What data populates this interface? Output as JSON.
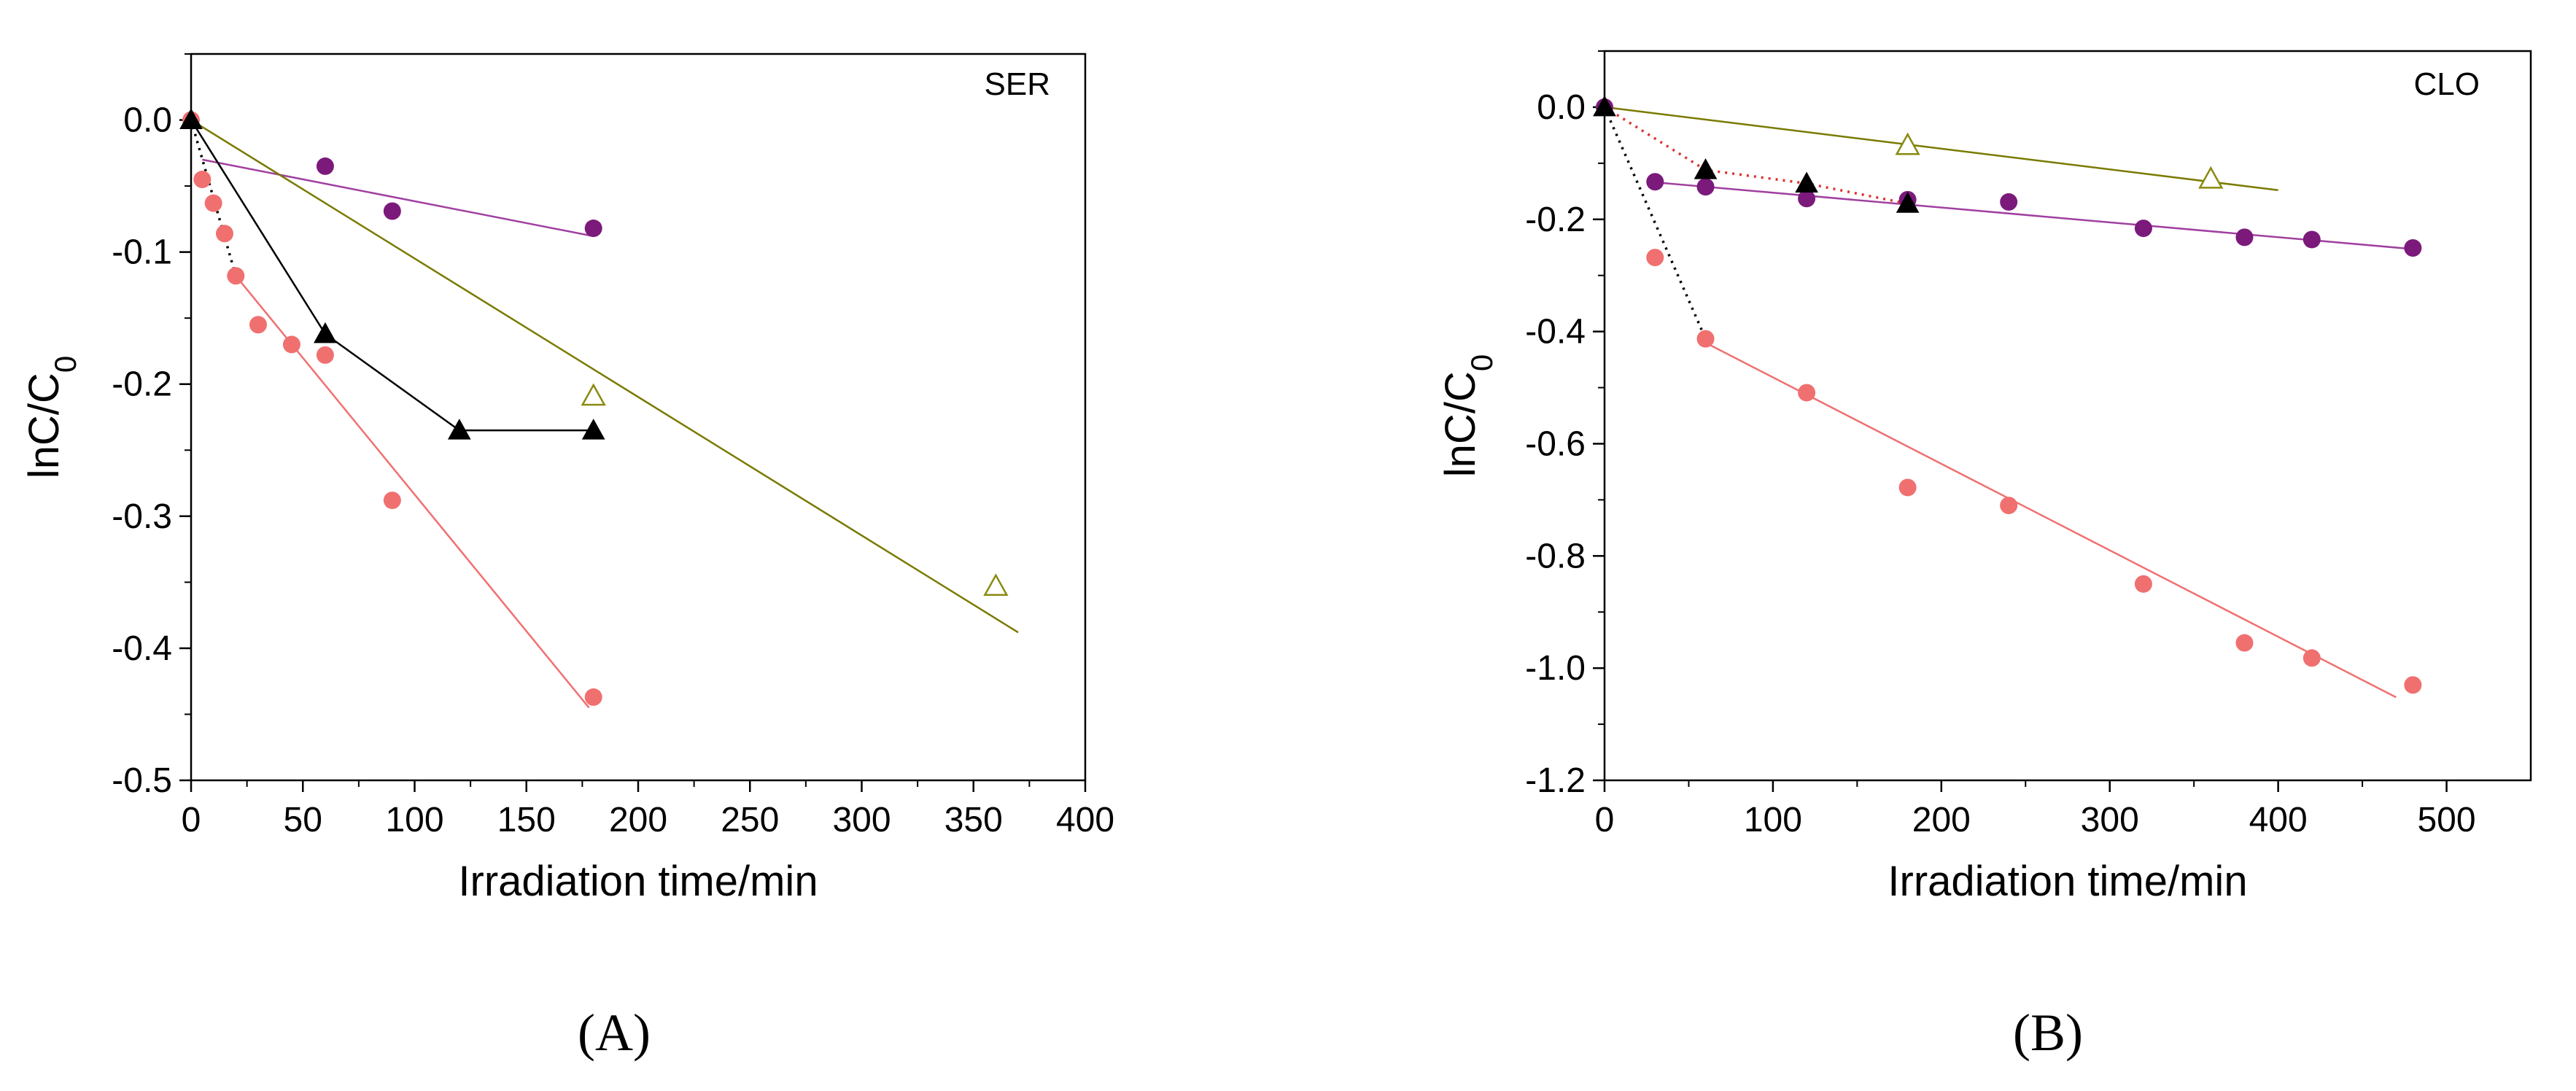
{
  "chart_data": [
    {
      "type": "scatter",
      "panel": "(A)",
      "annotation": "SER",
      "xlabel": "Irradiation time/min",
      "ylabel_main": "lnC/C",
      "ylabel_sub": "0",
      "xlim": [
        0,
        400
      ],
      "ylim": [
        -0.5,
        0.05
      ],
      "xticks": [
        0,
        50,
        100,
        150,
        200,
        250,
        300,
        350,
        400
      ],
      "yticks": [
        0.0,
        -0.1,
        -0.2,
        -0.3,
        -0.4,
        -0.5
      ],
      "xtick_labels": [
        "0",
        "50",
        "100",
        "150",
        "200",
        "250",
        "300",
        "350",
        "400"
      ],
      "ytick_labels": [
        "0.0",
        "-0.1",
        "-0.2",
        "-0.3",
        "-0.4",
        "-0.5"
      ],
      "series": [
        {
          "name": "salmon circles",
          "marker": "circle-filled",
          "color": "#f07070",
          "x": [
            0,
            5,
            10,
            15,
            20,
            30,
            45,
            60,
            90,
            180
          ],
          "y": [
            0,
            -0.045,
            -0.063,
            -0.086,
            -0.118,
            -0.155,
            -0.17,
            -0.178,
            -0.288,
            -0.437
          ],
          "fits": [
            {
              "style": "dotted",
              "color": "#000000",
              "x": [
                0,
                20
              ],
              "y": [
                0,
                -0.118
              ]
            },
            {
              "style": "solid",
              "color": "#f07070",
              "x": [
                20,
                178
              ],
              "y": [
                -0.118,
                -0.445
              ]
            }
          ]
        },
        {
          "name": "purple circles",
          "marker": "circle-filled",
          "color": "#7b1a7b",
          "x": [
            60,
            90,
            180
          ],
          "y": [
            -0.035,
            -0.069,
            -0.082
          ],
          "fits": [
            {
              "style": "solid",
              "color": "#a040a0",
              "x": [
                5,
                180
              ],
              "y": [
                -0.03,
                -0.088
              ]
            }
          ]
        },
        {
          "name": "black filled triangles",
          "marker": "triangle-filled",
          "color": "#000000",
          "x": [
            0,
            60,
            120,
            180
          ],
          "y": [
            0,
            -0.162,
            -0.235,
            -0.235
          ],
          "fits": [
            {
              "style": "solid",
              "color": "#000000",
              "x": [
                0,
                60,
                120,
                180
              ],
              "y": [
                0,
                -0.162,
                -0.235,
                -0.235
              ]
            }
          ]
        },
        {
          "name": "olive open triangles",
          "marker": "triangle-open",
          "color": "#8a8a10",
          "x": [
            180,
            360
          ],
          "y": [
            -0.209,
            -0.353
          ],
          "fits": [
            {
              "style": "solid",
              "color": "#7a7a00",
              "x": [
                0,
                370
              ],
              "y": [
                0,
                -0.388
              ]
            }
          ]
        }
      ]
    },
    {
      "type": "scatter",
      "panel": "(B)",
      "annotation": "CLO",
      "xlabel": "Irradiation time/min",
      "ylabel_main": "lnC/C",
      "ylabel_sub": "0",
      "xlim": [
        0,
        550
      ],
      "ylim": [
        -1.2,
        0.1
      ],
      "xticks": [
        0,
        100,
        200,
        300,
        400,
        500
      ],
      "yticks": [
        0.0,
        -0.2,
        -0.4,
        -0.6,
        -0.8,
        -1.0,
        -1.2
      ],
      "xtick_labels": [
        "0",
        "100",
        "200",
        "300",
        "400",
        "500"
      ],
      "ytick_labels": [
        "0.0",
        "-0.2",
        "-0.4",
        "-0.6",
        "-0.8",
        "-1.0",
        "-1.2"
      ],
      "series": [
        {
          "name": "salmon circles",
          "marker": "circle-filled",
          "color": "#f07070",
          "x": [
            0,
            30,
            60,
            120,
            180,
            240,
            320,
            380,
            420,
            480
          ],
          "y": [
            0,
            -0.268,
            -0.413,
            -0.509,
            -0.678,
            -0.71,
            -0.85,
            -0.955,
            -0.982,
            -1.03
          ],
          "fits": [
            {
              "style": "dotted",
              "color": "#000000",
              "x": [
                0,
                60
              ],
              "y": [
                0,
                -0.413
              ]
            },
            {
              "style": "solid",
              "color": "#f07070",
              "x": [
                60,
                470
              ],
              "y": [
                -0.42,
                -1.052
              ]
            }
          ]
        },
        {
          "name": "purple circles",
          "marker": "circle-filled",
          "color": "#7b1a7b",
          "x": [
            0,
            30,
            60,
            120,
            180,
            240,
            320,
            380,
            420,
            480
          ],
          "y": [
            0,
            -0.133,
            -0.142,
            -0.163,
            -0.165,
            -0.169,
            -0.216,
            -0.232,
            -0.236,
            -0.251
          ],
          "fits": [
            {
              "style": "solid",
              "color": "#a040a0",
              "x": [
                30,
                480
              ],
              "y": [
                -0.134,
                -0.253
              ]
            }
          ]
        },
        {
          "name": "black filled triangles",
          "marker": "triangle-filled",
          "color": "#000000",
          "x": [
            0,
            60,
            120,
            180
          ],
          "y": [
            0,
            -0.112,
            -0.136,
            -0.172
          ],
          "fits": [
            {
              "style": "dotted",
              "color": "#e03030",
              "x": [
                0,
                60,
                120,
                180
              ],
              "y": [
                0,
                -0.112,
                -0.136,
                -0.172
              ]
            }
          ]
        },
        {
          "name": "olive open triangles",
          "marker": "triangle-open",
          "color": "#8a8a10",
          "x": [
            180,
            360
          ],
          "y": [
            -0.068,
            -0.128
          ],
          "fits": [
            {
              "style": "solid",
              "color": "#7a7a00",
              "x": [
                0,
                400
              ],
              "y": [
                0,
                -0.148
              ]
            }
          ]
        }
      ]
    }
  ]
}
